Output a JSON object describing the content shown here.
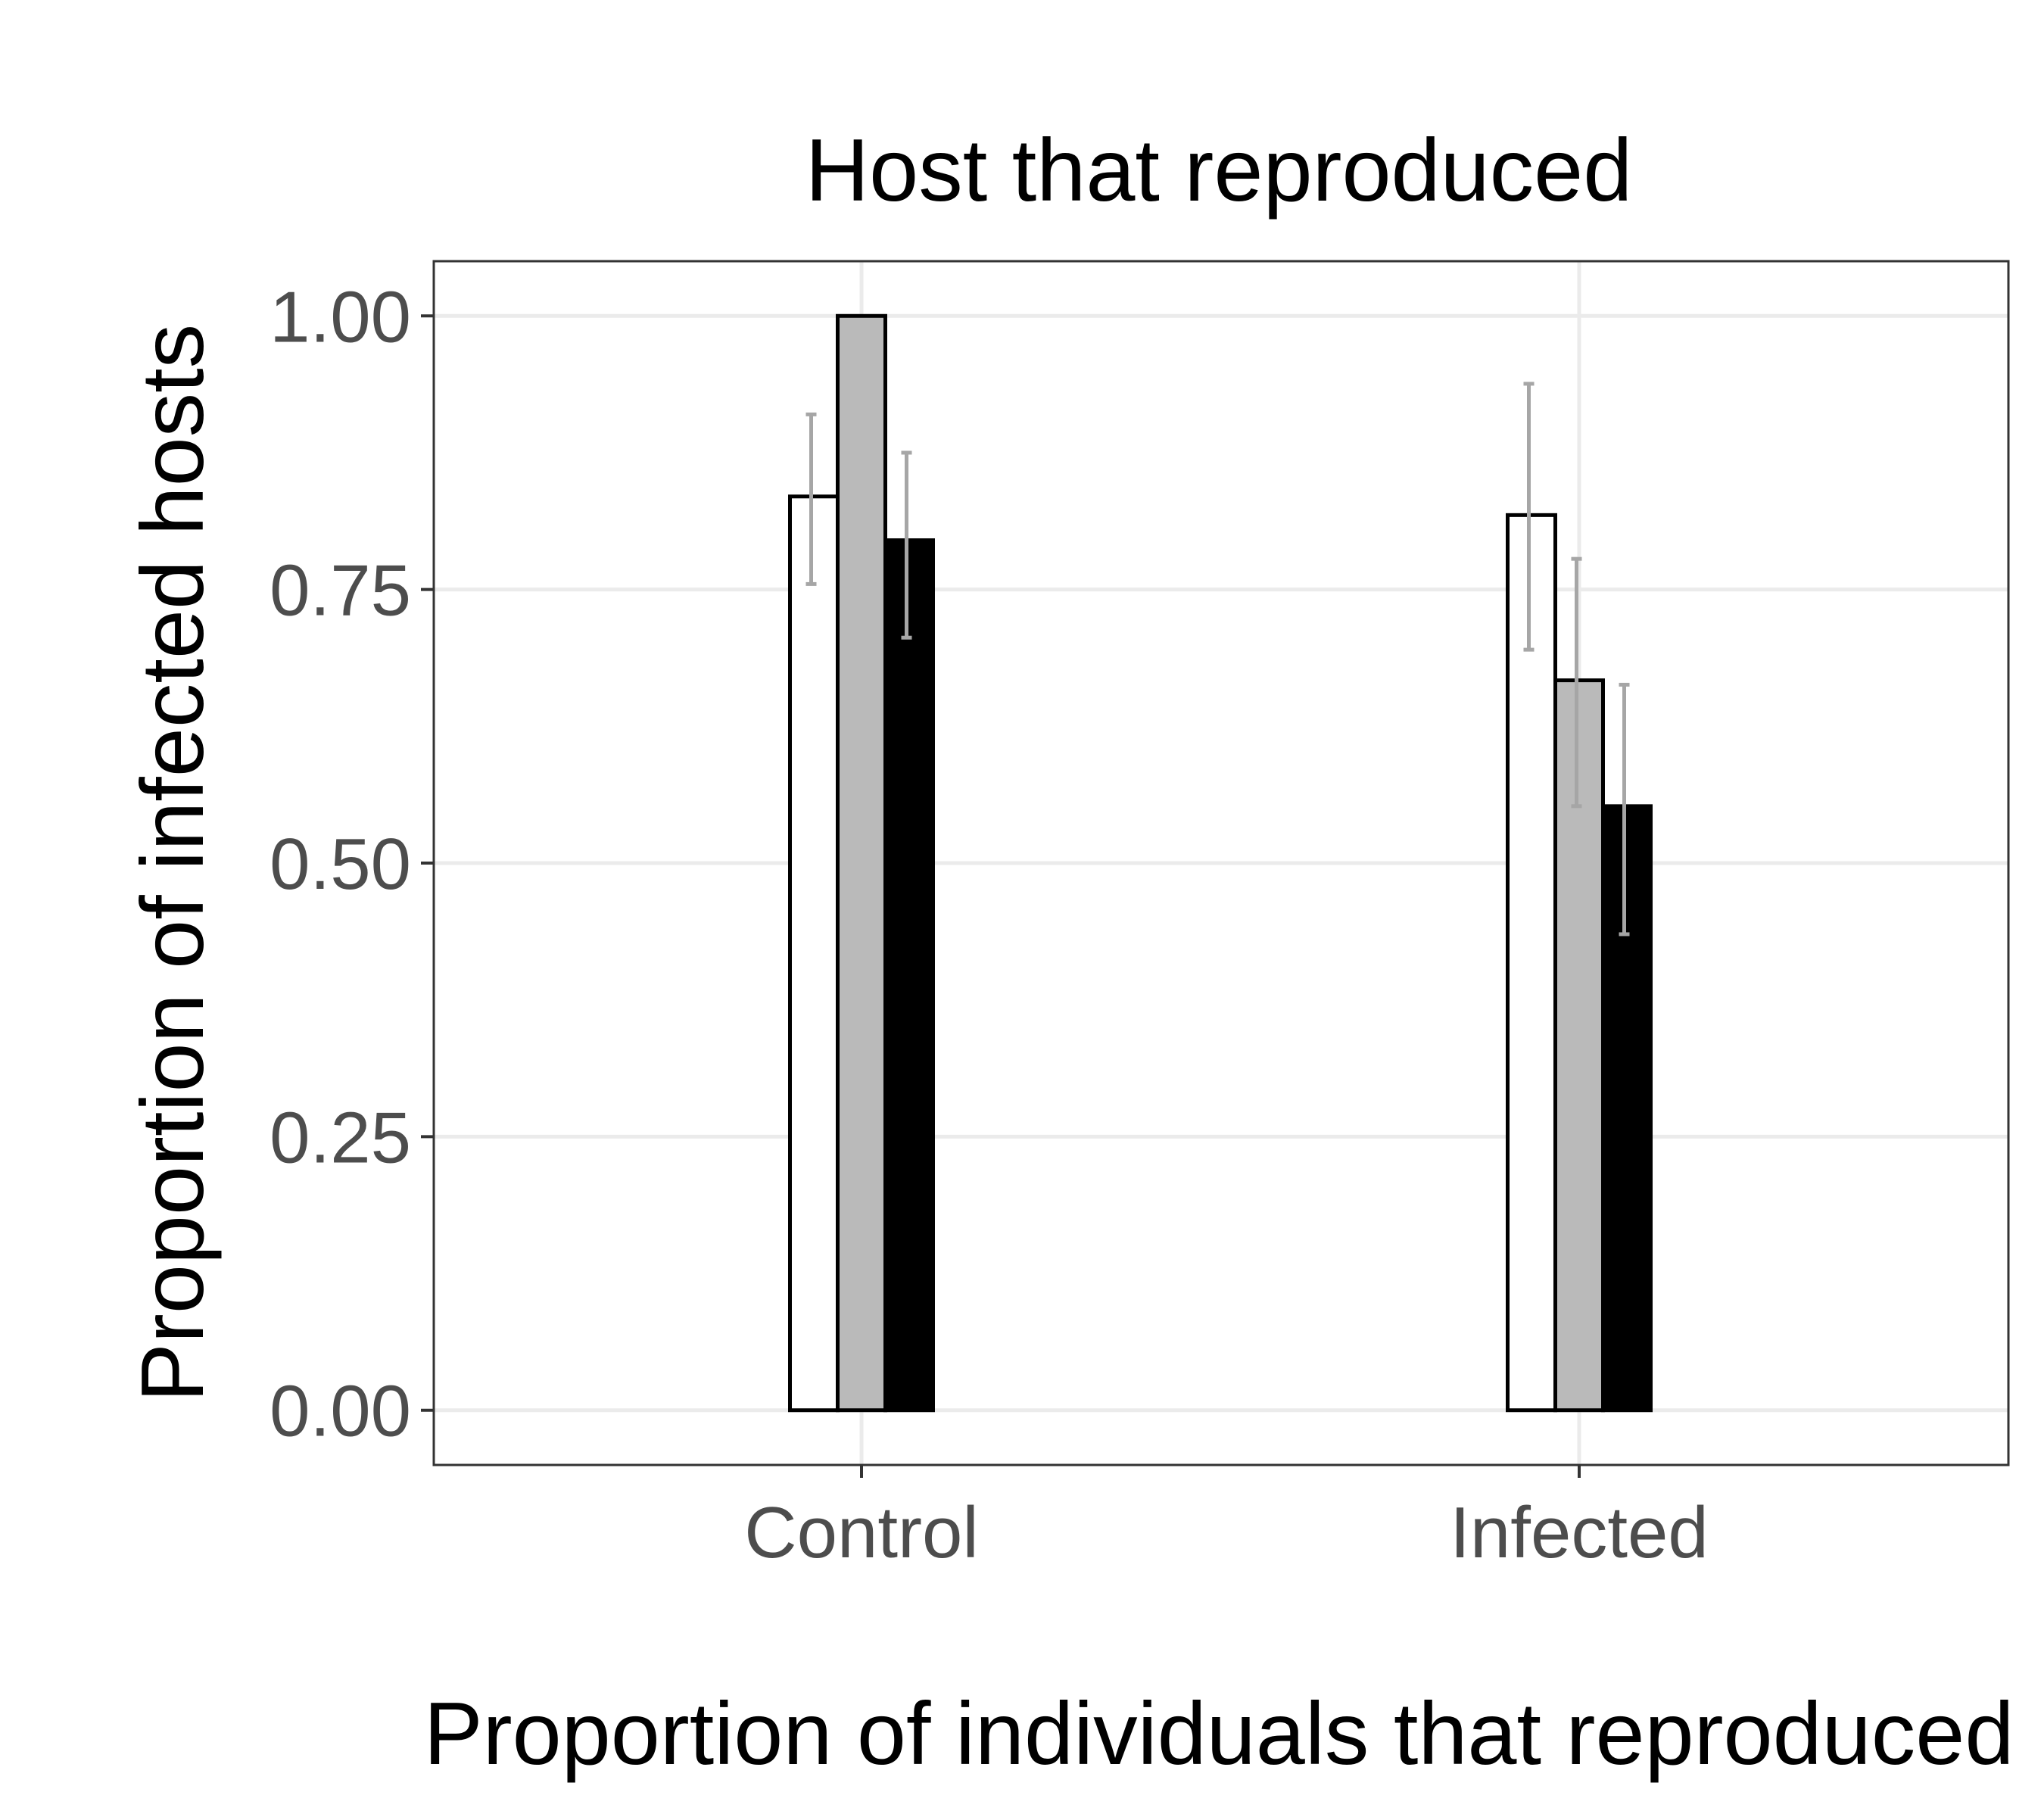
{
  "chart_data": {
    "type": "bar",
    "title": "Host that reproduced",
    "xlabel": "Proportion of individuals that reproduced",
    "ylabel": "Proportion of infected hosts",
    "categories": [
      "Control",
      "Infected"
    ],
    "y_ticks": [
      "0.00",
      "0.25",
      "0.50",
      "0.75",
      "1.00"
    ],
    "ylim": [
      -0.05,
      1.05
    ],
    "grid": true,
    "legend": "none",
    "series": [
      {
        "fill": "#ffffff",
        "values": [
          0.835,
          0.818
        ],
        "error_low": [
          0.755,
          0.695
        ],
        "error_high": [
          0.91,
          0.938
        ]
      },
      {
        "fill": "#bababa",
        "values": [
          1.0,
          0.667
        ],
        "error_low": [
          1.0,
          0.552
        ],
        "error_high": [
          1.0,
          0.778
        ]
      },
      {
        "fill": "#000000",
        "values": [
          0.795,
          0.552
        ],
        "error_low": [
          0.706,
          0.435
        ],
        "error_high": [
          0.875,
          0.663
        ]
      }
    ],
    "colors": {
      "bar_outline": "#000000",
      "error_bar": "#a6a6a6",
      "grid": "#ebebeb",
      "panel_border": "#333333"
    }
  }
}
